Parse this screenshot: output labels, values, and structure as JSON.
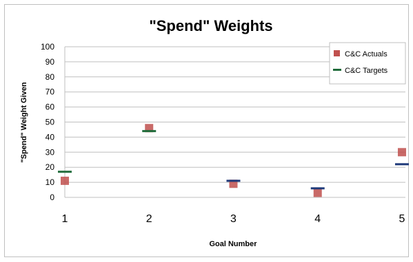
{
  "chart_data": {
    "type": "scatter",
    "title": "\"Spend\" Weights",
    "xlabel": "Goal Number",
    "ylabel": "\"Spend\" Weight Given",
    "categories": [
      "1",
      "2",
      "3",
      "4",
      "5"
    ],
    "ylim": [
      0,
      100
    ],
    "yticks": [
      "0",
      "10",
      "20",
      "30",
      "40",
      "50",
      "60",
      "70",
      "80",
      "90",
      "100"
    ],
    "grid": "horizontal",
    "legend_position": "top-right",
    "series": [
      {
        "name": "C&C Actuals",
        "marker": "square",
        "color": "#c0504d",
        "values": [
          11,
          46,
          9,
          3,
          30
        ]
      },
      {
        "name": "C&C Targets",
        "marker": "dash",
        "color_by_point": [
          "#1f6b3a",
          "#1f6b3a",
          "#1f3a7a",
          "#1f3a7a",
          "#1f3a7a"
        ],
        "legend_color": "#1f6b3a",
        "values": [
          17,
          44,
          11,
          6,
          22
        ]
      }
    ]
  }
}
